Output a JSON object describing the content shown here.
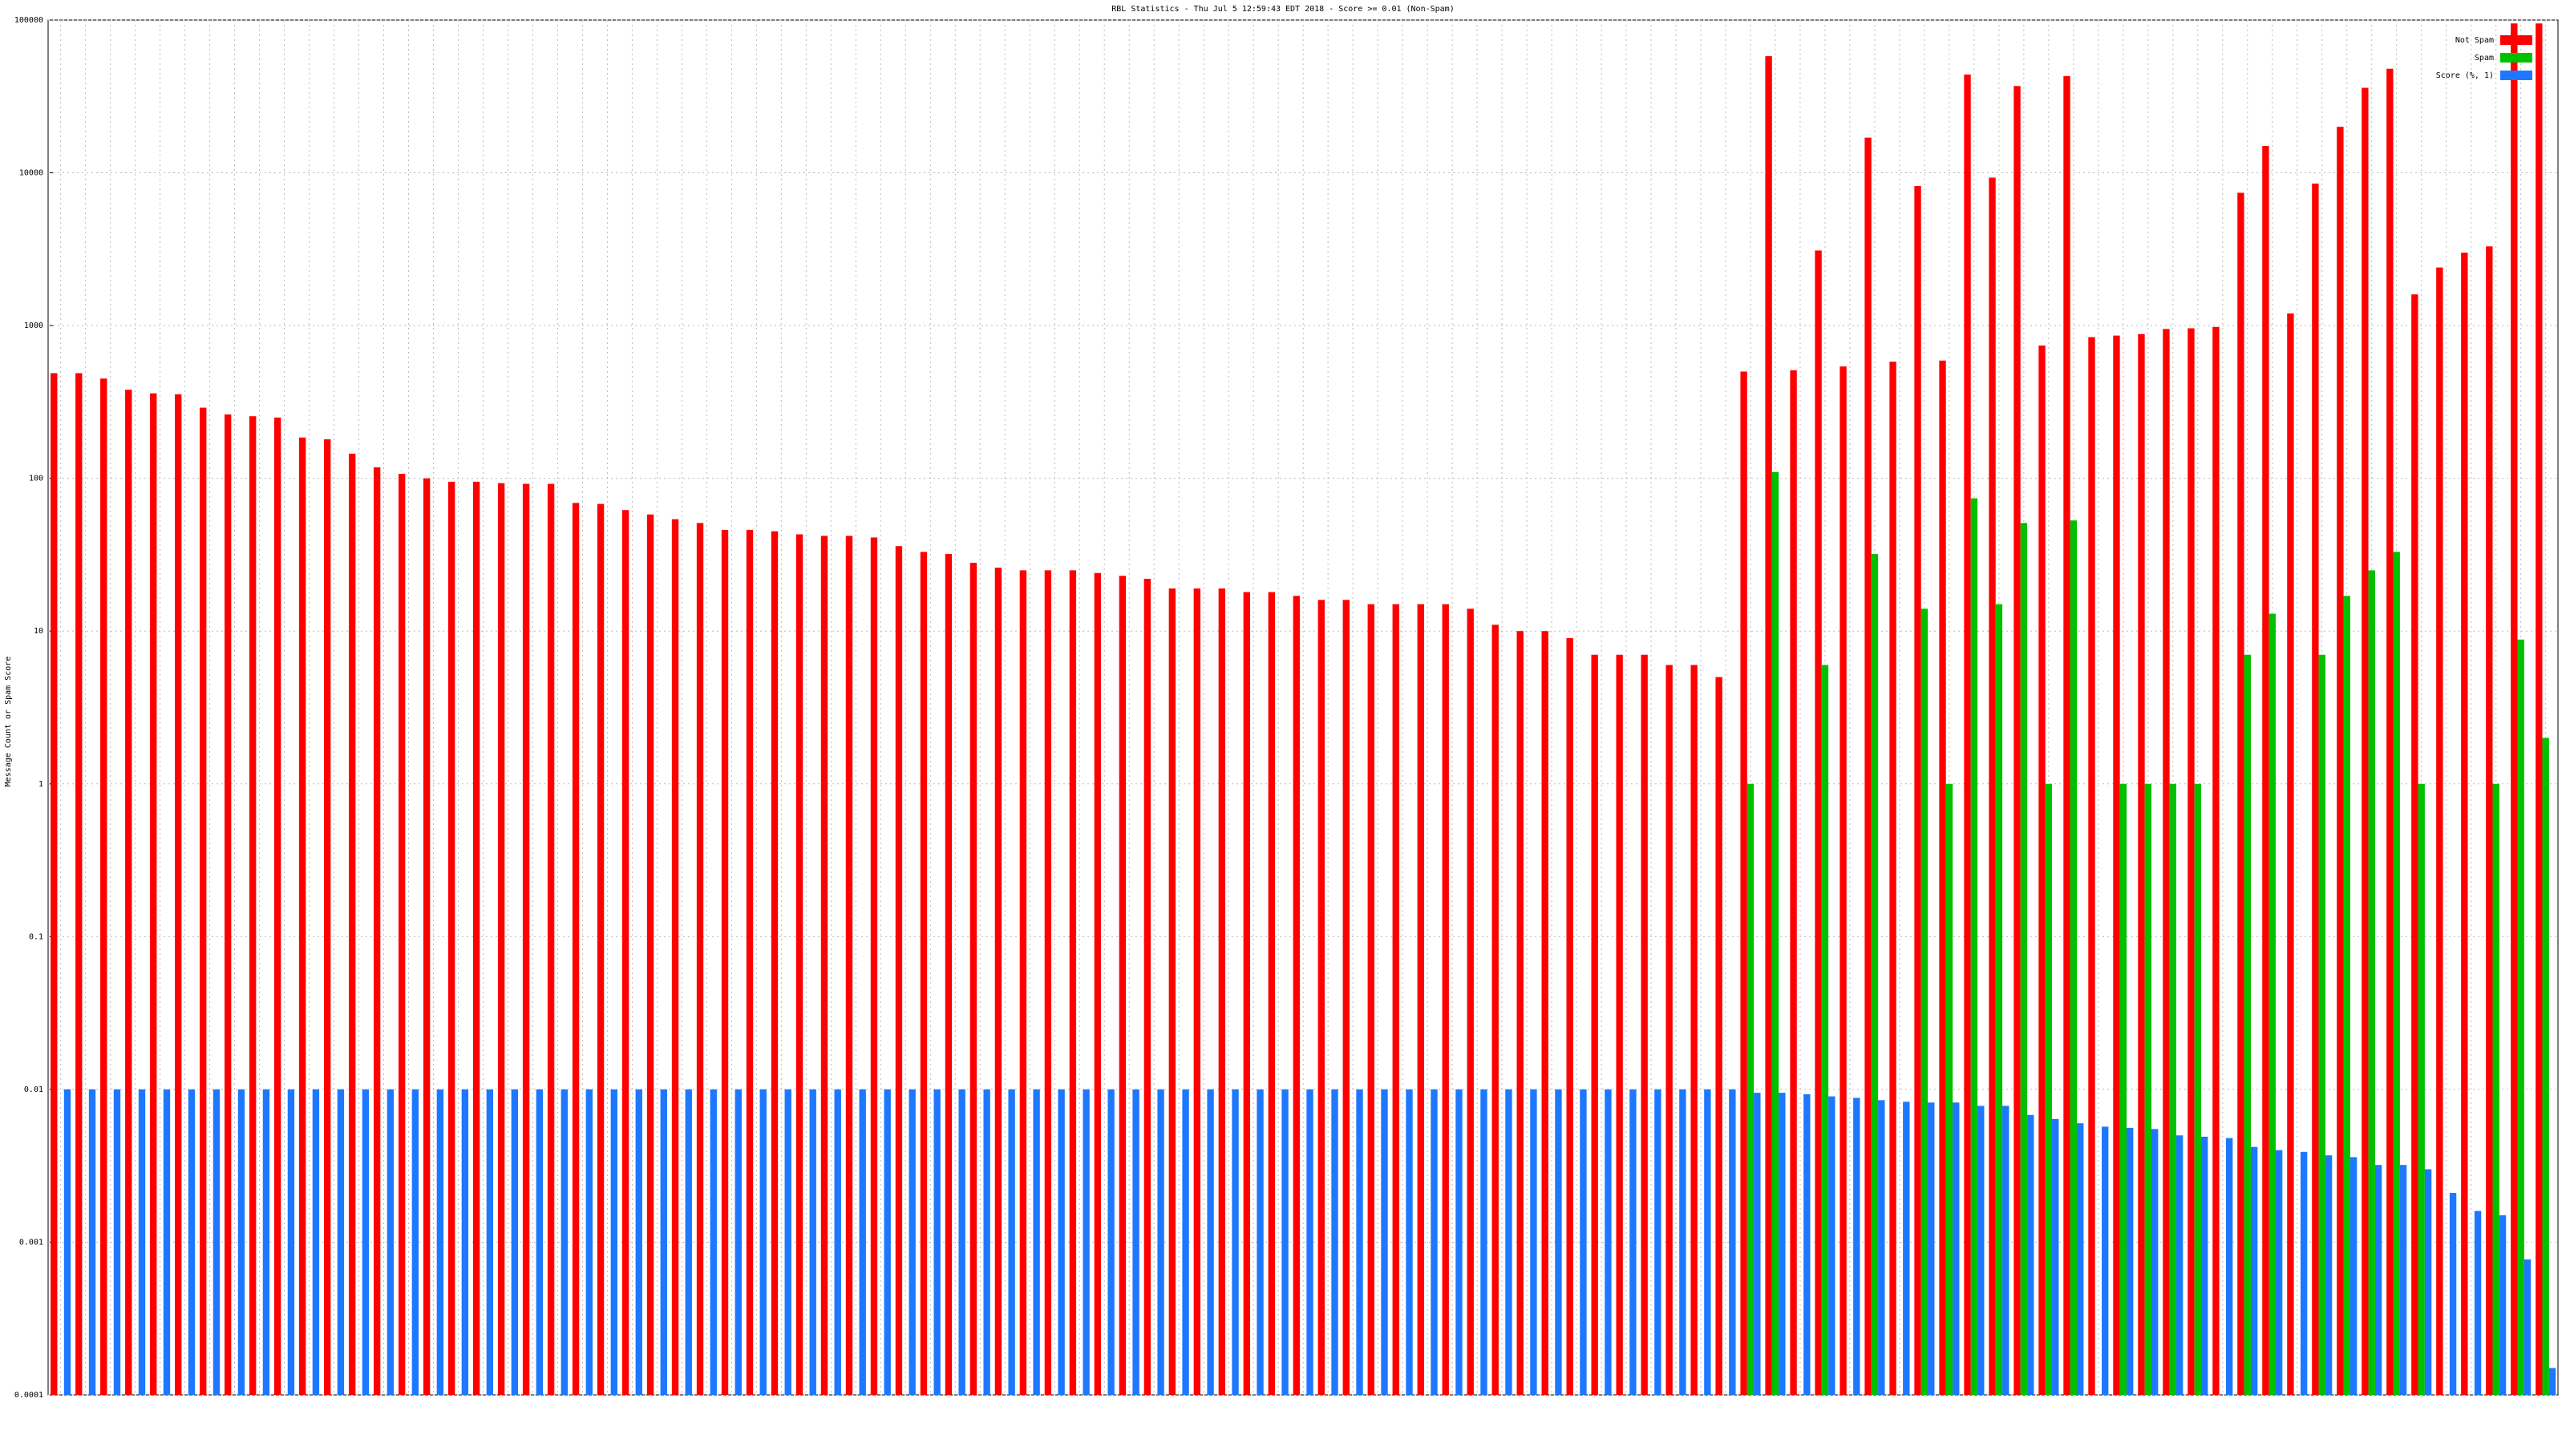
{
  "chart_data": {
    "type": "bar",
    "title": "RBL Statistics - Thu Jul  5 12:59:43 EDT 2018 - Score >= 0.01 (Non-Spam)",
    "y_label": "Message Count or Spam Score",
    "log_y": true,
    "grid": true,
    "legend": "top-right",
    "ylim": [
      0.0001,
      100000
    ],
    "yticks": [
      0.0001,
      0.001,
      0.01,
      0.1,
      1,
      10,
      100,
      1000,
      10000,
      100000
    ],
    "categories": [
      null,
      null,
      null,
      null,
      null,
      null,
      null,
      null,
      null,
      null,
      null,
      null,
      null,
      null,
      null,
      null,
      null,
      null,
      null,
      null,
      null,
      null,
      null,
      null,
      null,
      null,
      null,
      null,
      null,
      null,
      null,
      null,
      null,
      null,
      null,
      null,
      null,
      null,
      null,
      null,
      null,
      null,
      null,
      null,
      null,
      null,
      null,
      null,
      null,
      null,
      null,
      null,
      null,
      null,
      null,
      null,
      null,
      null,
      null,
      null,
      null,
      null,
      null,
      null,
      null,
      null,
      null,
      null,
      null,
      null,
      null,
      null,
      null,
      null,
      null,
      null,
      null,
      null,
      null,
      null,
      null,
      null,
      null,
      null,
      null,
      null,
      null,
      null,
      null,
      null,
      null,
      null,
      null,
      null,
      null,
      null,
      null,
      null,
      null,
      null,
      null
    ],
    "series": [
      {
        "name": "Not Spam",
        "color": "#ff0000",
        "values": [
          488,
          488,
          450,
          380,
          360,
          355,
          290,
          262,
          255,
          250,
          185,
          180,
          145,
          118,
          107,
          100,
          95,
          95,
          93,
          92,
          92,
          69,
          68,
          62,
          58,
          54,
          51,
          46,
          46,
          45,
          43,
          42,
          42,
          41,
          36,
          33,
          32,
          28,
          26,
          25,
          25,
          25,
          24,
          23,
          22,
          19,
          19,
          19,
          18,
          18,
          17,
          16,
          16,
          15,
          15,
          15,
          15,
          14,
          11,
          10,
          10,
          9,
          7,
          7,
          7,
          6,
          6,
          5,
          500,
          58000,
          510,
          3100,
          540,
          17000,
          580,
          8200,
          590,
          44000,
          9300,
          37000,
          740,
          43000,
          840,
          860,
          880,
          950,
          960,
          980,
          7400,
          15000,
          1200,
          8500,
          20000,
          36000,
          48000,
          1600,
          2400,
          3000,
          3300,
          95000,
          95000
        ]
      },
      {
        "name": "Spam",
        "color": "#00c000",
        "values": [
          null,
          null,
          null,
          null,
          null,
          null,
          null,
          null,
          null,
          null,
          null,
          null,
          null,
          null,
          null,
          null,
          null,
          null,
          null,
          null,
          null,
          null,
          null,
          null,
          null,
          null,
          null,
          null,
          null,
          null,
          null,
          null,
          null,
          null,
          null,
          null,
          null,
          null,
          null,
          null,
          null,
          null,
          null,
          null,
          null,
          null,
          null,
          null,
          null,
          null,
          null,
          null,
          null,
          null,
          null,
          null,
          null,
          null,
          null,
          null,
          null,
          null,
          null,
          null,
          null,
          null,
          null,
          null,
          1,
          110,
          null,
          6,
          null,
          32,
          null,
          14,
          1,
          74,
          15,
          51,
          1,
          53,
          null,
          1,
          1,
          1,
          1,
          null,
          7,
          13,
          null,
          7,
          17,
          25,
          33,
          1,
          null,
          null,
          1,
          8.8,
          2
        ]
      },
      {
        "name": "Score (%, 1)",
        "color": "#1e78ff",
        "values": [
          0.01,
          0.01,
          0.01,
          0.01,
          0.01,
          0.01,
          0.01,
          0.01,
          0.01,
          0.01,
          0.01,
          0.01,
          0.01,
          0.01,
          0.01,
          0.01,
          0.01,
          0.01,
          0.01,
          0.01,
          0.01,
          0.01,
          0.01,
          0.01,
          0.01,
          0.01,
          0.01,
          0.01,
          0.01,
          0.01,
          0.01,
          0.01,
          0.01,
          0.01,
          0.01,
          0.01,
          0.01,
          0.01,
          0.01,
          0.01,
          0.01,
          0.01,
          0.01,
          0.01,
          0.01,
          0.01,
          0.01,
          0.01,
          0.01,
          0.01,
          0.01,
          0.01,
          0.01,
          0.01,
          0.01,
          0.01,
          0.01,
          0.01,
          0.01,
          0.01,
          0.01,
          0.01,
          0.01,
          0.01,
          0.01,
          0.01,
          0.01,
          0.01,
          0.0095,
          0.0095,
          0.0093,
          0.009,
          0.0088,
          0.0085,
          0.0083,
          0.0082,
          0.0082,
          0.0078,
          0.0078,
          0.0068,
          0.0064,
          0.006,
          0.0057,
          0.0056,
          0.0055,
          0.005,
          0.0049,
          0.0048,
          0.0042,
          0.004,
          0.0039,
          0.0037,
          0.0036,
          0.0032,
          0.0032,
          0.003,
          0.0021,
          0.0016,
          0.0015,
          0.00077,
          0.00015
        ]
      }
    ]
  }
}
